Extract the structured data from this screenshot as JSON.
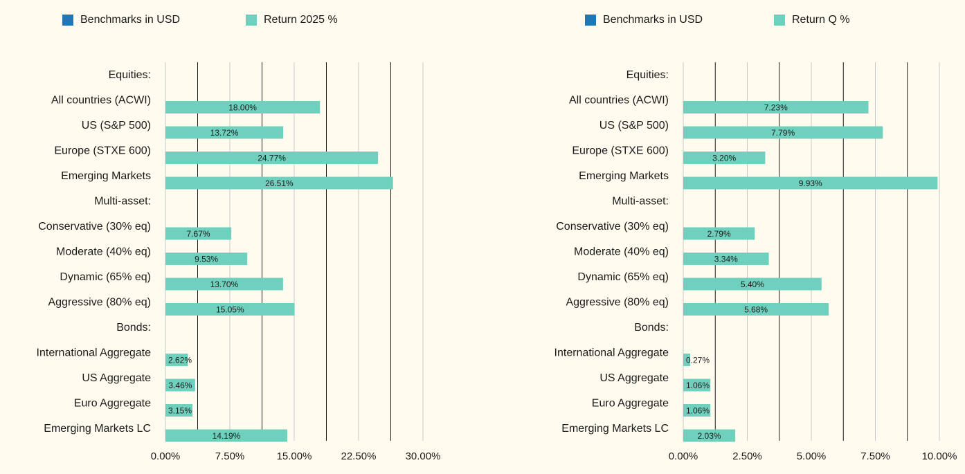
{
  "colors": {
    "benchmark": "#2176b8",
    "return": "#6fd1bd",
    "background": "#fffbef"
  },
  "chart_data": [
    {
      "type": "bar",
      "orientation": "horizontal",
      "legend": {
        "placement": "top",
        "entries": [
          "Benchmarks in USD",
          "Return 2025 %"
        ]
      },
      "categories": [
        "Equities:",
        "All countries (ACWI)",
        "US (S&P 500)",
        "Europe (STXE 600)",
        "Emerging Markets",
        "Multi-asset:",
        "Conservative (30% eq)",
        "Moderate (40% eq)",
        "Dynamic (65% eq)",
        "Aggressive (80% eq)",
        "Bonds:",
        "International Aggregate",
        "US Aggregate",
        "Euro Aggregate",
        "Emerging Markets LC"
      ],
      "series": [
        {
          "name": "Benchmarks in USD",
          "values": [
            null,
            null,
            null,
            null,
            null,
            null,
            null,
            null,
            null,
            null,
            null,
            null,
            null,
            null,
            null
          ]
        },
        {
          "name": "Return 2025 %",
          "values": [
            null,
            18.0,
            13.72,
            24.77,
            26.51,
            null,
            7.67,
            9.53,
            13.7,
            15.05,
            null,
            2.62,
            3.46,
            3.15,
            14.19
          ]
        }
      ],
      "data_labels": [
        "",
        "18.00%",
        "13.72%",
        "24.77%",
        "26.51%",
        "",
        "7.67%",
        "9.53%",
        "13.70%",
        "15.05%",
        "",
        "2.62%",
        "3.46%",
        "3.15%",
        "14.19%"
      ],
      "x_ticks": [
        "0.00%",
        "7.50%",
        "15.00%",
        "22.50%",
        "30.00%"
      ],
      "xlim": [
        0,
        30
      ],
      "grid": true
    },
    {
      "type": "bar",
      "orientation": "horizontal",
      "legend": {
        "placement": "top",
        "entries": [
          "Benchmarks in USD",
          "Return Q %"
        ]
      },
      "categories": [
        "Equities:",
        "All countries (ACWI)",
        "US (S&P 500)",
        "Europe (STXE 600)",
        "Emerging Markets",
        "Multi-asset:",
        "Conservative (30% eq)",
        "Moderate (40% eq)",
        "Dynamic (65% eq)",
        "Aggressive (80% eq)",
        "Bonds:",
        "International Aggregate",
        "US Aggregate",
        "Euro Aggregate",
        "Emerging Markets LC"
      ],
      "series": [
        {
          "name": "Benchmarks in USD",
          "values": [
            null,
            null,
            null,
            null,
            null,
            null,
            null,
            null,
            null,
            null,
            null,
            null,
            null,
            null,
            null
          ]
        },
        {
          "name": "Return Q %",
          "values": [
            null,
            7.23,
            7.79,
            3.2,
            9.93,
            null,
            2.79,
            3.34,
            5.4,
            5.68,
            null,
            0.27,
            1.06,
            1.06,
            2.03
          ]
        }
      ],
      "data_labels": [
        "",
        "7.23%",
        "7.79%",
        "3.20%",
        "9.93%",
        "",
        "2.79%",
        "3.34%",
        "5.40%",
        "5.68%",
        "",
        "0.27%",
        "1.06%",
        "1.06%",
        "2.03%"
      ],
      "x_ticks": [
        "0.00%",
        "2.50%",
        "5.00%",
        "7.50%",
        "10.00%"
      ],
      "xlim": [
        0,
        10
      ],
      "grid": true
    }
  ]
}
